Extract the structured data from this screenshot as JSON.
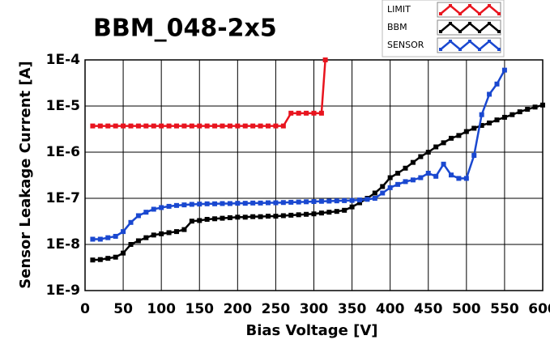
{
  "chart_data": {
    "type": "line",
    "title": "BBM_048-2x5",
    "xlabel": "Bias Voltage [V]",
    "ylabel": "Sensor Leakage Current [A]",
    "xlim": [
      0,
      600
    ],
    "xticks": [
      0,
      50,
      100,
      150,
      200,
      250,
      300,
      350,
      400,
      450,
      500,
      550,
      600
    ],
    "ylim": [
      1e-09,
      0.0001
    ],
    "log_y": true,
    "yticks": [
      {
        "value": 1e-09,
        "label": "1E-9"
      },
      {
        "value": 1e-08,
        "label": "1E-8"
      },
      {
        "value": 1e-07,
        "label": "1E-7"
      },
      {
        "value": 1e-06,
        "label": "1E-6"
      },
      {
        "value": 1e-05,
        "label": "1E-5"
      },
      {
        "value": 0.0001,
        "label": "1E-4"
      }
    ],
    "grid": true,
    "legend": "top-right",
    "series": [
      {
        "name": "LIMIT",
        "color": "#e8141e",
        "x": [
          10,
          20,
          30,
          40,
          50,
          60,
          70,
          80,
          90,
          100,
          110,
          120,
          130,
          140,
          150,
          160,
          170,
          180,
          190,
          200,
          210,
          220,
          230,
          240,
          250,
          260,
          270,
          280,
          290,
          300,
          310,
          315
        ],
        "values": [
          3.7e-06,
          3.7e-06,
          3.7e-06,
          3.7e-06,
          3.7e-06,
          3.7e-06,
          3.7e-06,
          3.7e-06,
          3.7e-06,
          3.7e-06,
          3.7e-06,
          3.7e-06,
          3.7e-06,
          3.7e-06,
          3.7e-06,
          3.7e-06,
          3.7e-06,
          3.7e-06,
          3.7e-06,
          3.7e-06,
          3.7e-06,
          3.7e-06,
          3.7e-06,
          3.7e-06,
          3.7e-06,
          3.7e-06,
          7e-06,
          7e-06,
          7e-06,
          7e-06,
          7e-06,
          0.0001
        ]
      },
      {
        "name": "BBM",
        "color": "#000000",
        "x": [
          10,
          20,
          30,
          40,
          50,
          60,
          70,
          80,
          90,
          100,
          110,
          120,
          130,
          140,
          150,
          160,
          170,
          180,
          190,
          200,
          210,
          220,
          230,
          240,
          250,
          260,
          270,
          280,
          290,
          300,
          310,
          320,
          330,
          340,
          350,
          360,
          370,
          380,
          390,
          400,
          410,
          420,
          430,
          440,
          450,
          460,
          470,
          480,
          490,
          500,
          510,
          520,
          530,
          540,
          550,
          560,
          570,
          580,
          590,
          600
        ],
        "values": [
          4.6e-09,
          4.7e-09,
          5e-09,
          5.3e-09,
          6.5e-09,
          1e-08,
          1.2e-08,
          1.4e-08,
          1.6e-08,
          1.7e-08,
          1.8e-08,
          1.9e-08,
          2.1e-08,
          3.2e-08,
          3.3e-08,
          3.5e-08,
          3.6e-08,
          3.7e-08,
          3.8e-08,
          3.9e-08,
          3.9e-08,
          4e-08,
          4e-08,
          4.1e-08,
          4.1e-08,
          4.2e-08,
          4.3e-08,
          4.4e-08,
          4.5e-08,
          4.6e-08,
          4.8e-08,
          5e-08,
          5.2e-08,
          5.5e-08,
          6.5e-08,
          8e-08,
          1e-07,
          1.3e-07,
          1.8e-07,
          2.8e-07,
          3.5e-07,
          4.5e-07,
          6e-07,
          8e-07,
          1e-06,
          1.3e-06,
          1.6e-06,
          2e-06,
          2.3e-06,
          2.8e-06,
          3.3e-06,
          3.8e-06,
          4.3e-06,
          5e-06,
          5.7e-06,
          6.5e-06,
          7.5e-06,
          8.5e-06,
          9.5e-06,
          1.05e-05
        ]
      },
      {
        "name": "SENSOR",
        "color": "#1a48d0",
        "x": [
          10,
          20,
          30,
          40,
          50,
          60,
          70,
          80,
          90,
          100,
          110,
          120,
          130,
          140,
          150,
          160,
          170,
          180,
          190,
          200,
          210,
          220,
          230,
          240,
          250,
          260,
          270,
          280,
          290,
          300,
          310,
          320,
          330,
          340,
          350,
          360,
          370,
          380,
          390,
          400,
          410,
          420,
          430,
          440,
          450,
          460,
          470,
          480,
          490,
          500,
          510,
          520,
          530,
          540,
          550
        ],
        "values": [
          1.3e-08,
          1.3e-08,
          1.4e-08,
          1.5e-08,
          1.9e-08,
          3e-08,
          4.2e-08,
          5e-08,
          5.8e-08,
          6.3e-08,
          6.7e-08,
          7e-08,
          7.2e-08,
          7.4e-08,
          7.5e-08,
          7.6e-08,
          7.6e-08,
          7.7e-08,
          7.7e-08,
          7.8e-08,
          7.8e-08,
          7.9e-08,
          7.9e-08,
          8e-08,
          8e-08,
          8.1e-08,
          8.2e-08,
          8.3e-08,
          8.4e-08,
          8.5e-08,
          8.6e-08,
          8.7e-08,
          8.8e-08,
          8.9e-08,
          9e-08,
          9.2e-08,
          9.5e-08,
          1e-07,
          1.3e-07,
          1.7e-07,
          2e-07,
          2.3e-07,
          2.5e-07,
          2.8e-07,
          3.5e-07,
          3e-07,
          5.5e-07,
          3.2e-07,
          2.7e-07,
          2.7e-07,
          8.5e-07,
          6.5e-06,
          1.8e-05,
          3e-05,
          6e-05
        ]
      }
    ]
  }
}
